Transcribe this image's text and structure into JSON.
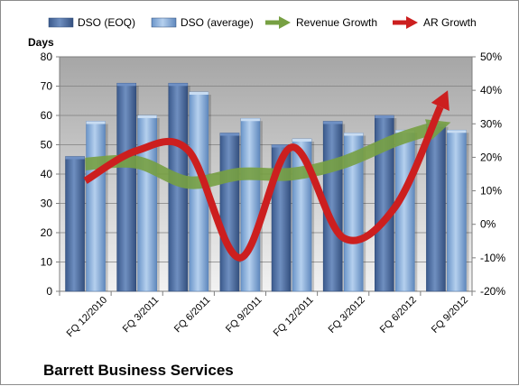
{
  "chart_data": {
    "type": "bar",
    "title": "Barrett Business Services",
    "ylabel": "Days",
    "ylim": [
      0,
      80
    ],
    "y_ticks": [
      0,
      10,
      20,
      30,
      40,
      50,
      60,
      70,
      80
    ],
    "y2lim": [
      -20,
      50
    ],
    "y2_ticks": [
      "-20%",
      "-10%",
      "0%",
      "10%",
      "20%",
      "30%",
      "40%",
      "50%"
    ],
    "grid": true,
    "legend_position": "top",
    "categories": [
      "FQ 12/2010",
      "FQ 3/2011",
      "FQ 6/2011",
      "FQ 9/2011",
      "FQ 12/2011",
      "FQ 3/2012",
      "FQ 6/2012",
      "FQ 9/2012"
    ],
    "series": [
      {
        "name": "DSO (EOQ)",
        "type": "bar",
        "axis": "left",
        "color": "#4a6fa5",
        "values": [
          46,
          71,
          71,
          54,
          50,
          58,
          60,
          57
        ]
      },
      {
        "name": "DSO (average)",
        "type": "bar",
        "axis": "left",
        "color": "#8db3e2",
        "values": [
          58,
          60,
          68,
          59,
          52,
          54,
          55,
          55
        ]
      },
      {
        "name": "Revenue Growth",
        "type": "line-arrow",
        "axis": "right",
        "color": "#77a043",
        "values": [
          18,
          18.5,
          12.5,
          15,
          15,
          18.5,
          25,
          30
        ]
      },
      {
        "name": "AR Growth",
        "type": "line-arrow",
        "axis": "right",
        "color": "#cc1f1f",
        "values": [
          13,
          22,
          22,
          -10,
          23,
          -4,
          5,
          39
        ]
      }
    ]
  }
}
